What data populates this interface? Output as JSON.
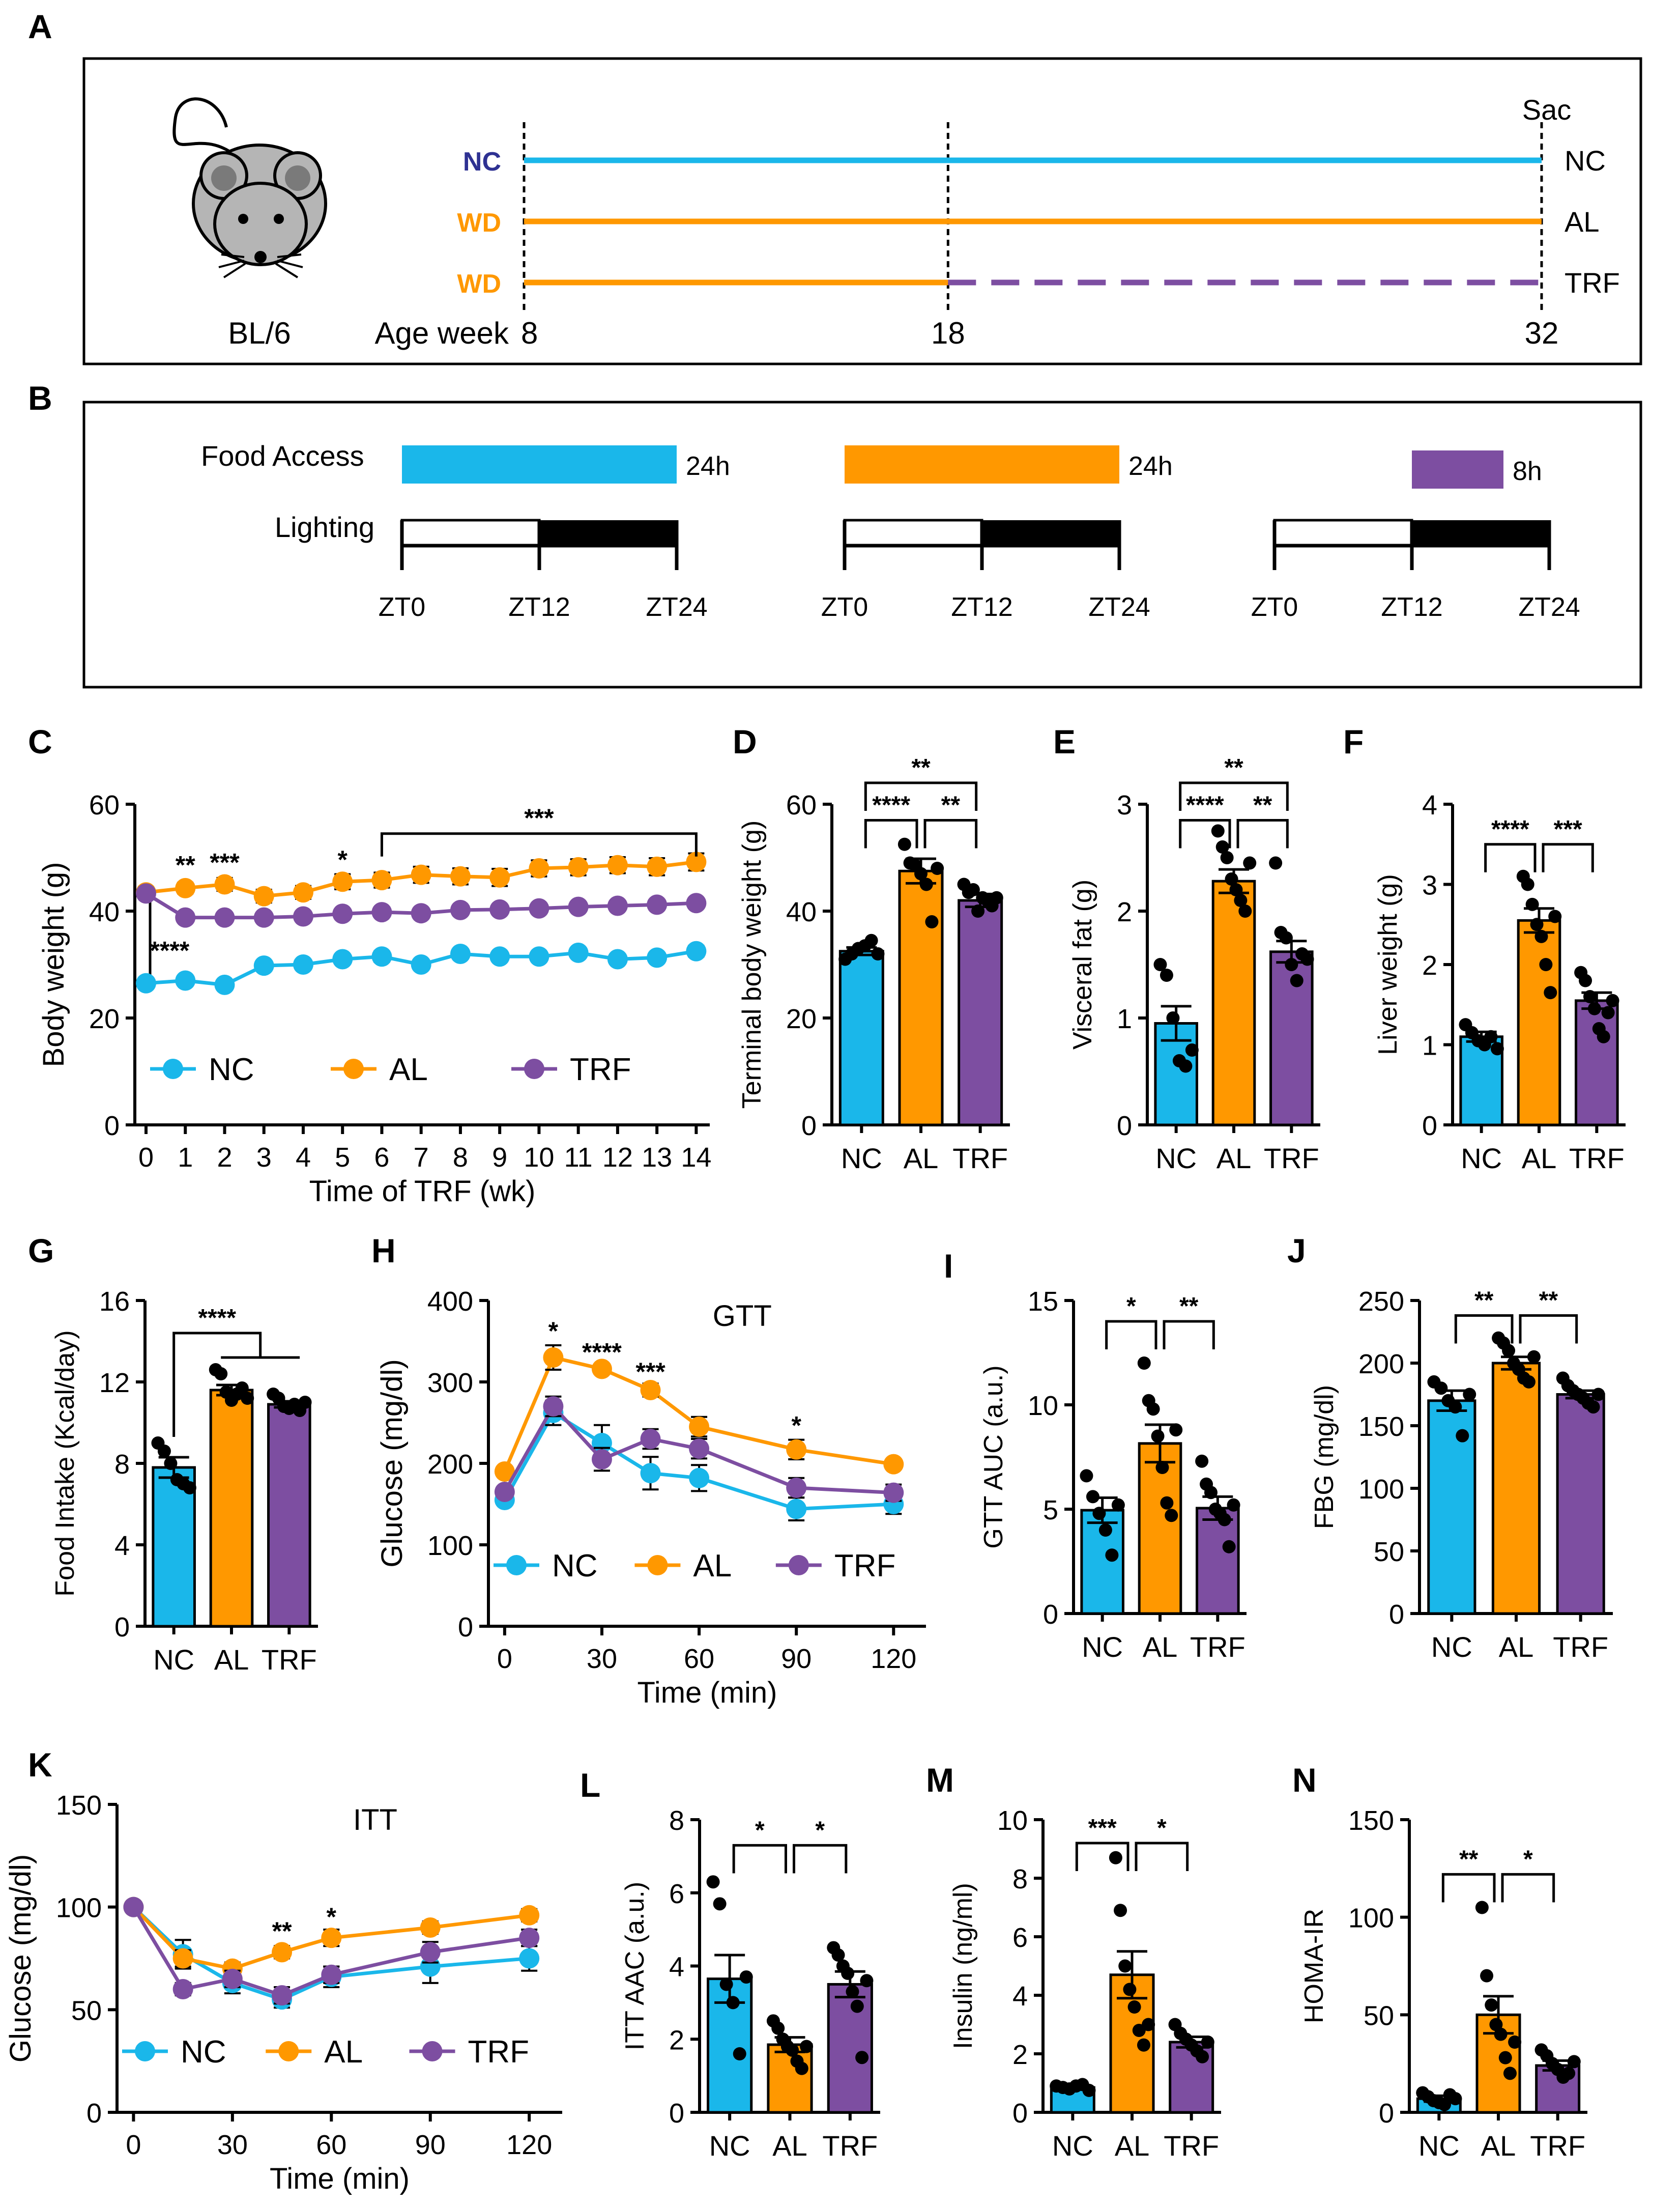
{
  "colors": {
    "nc": "#1ab7ea",
    "al": "#ff9800",
    "trf": "#7d4ea1",
    "nc_label": "#2e3192",
    "dark": "#000000"
  },
  "panels": {
    "a": "A",
    "b": "B",
    "c": "C",
    "d": "D",
    "e": "E",
    "f": "F",
    "g": "G",
    "h": "H",
    "i": "I",
    "j": "J",
    "k": "K",
    "l": "L",
    "m": "M",
    "n": "N"
  },
  "design": {
    "strain": "BL/6",
    "sac": "Sac",
    "rows": [
      {
        "diet": "NC",
        "group": "NC",
        "segments": [
          {
            "from": 8,
            "to": 32,
            "style": "solid",
            "color": "nc"
          }
        ]
      },
      {
        "diet": "WD",
        "group": "AL",
        "segments": [
          {
            "from": 8,
            "to": 32,
            "style": "solid",
            "color": "al"
          }
        ]
      },
      {
        "diet": "WD",
        "group": "TRF",
        "segments": [
          {
            "from": 8,
            "to": 18,
            "style": "solid",
            "color": "al"
          },
          {
            "from": 18,
            "to": 32,
            "style": "dashed",
            "color": "trf"
          }
        ]
      }
    ],
    "age_label": "Age week",
    "ages": [
      "8",
      "18",
      "32"
    ]
  },
  "schedule": {
    "food_label": "Food Access",
    "light_label": "Lighting",
    "groups": [
      {
        "color": "nc",
        "start": 0,
        "end": 24,
        "duration": "24h"
      },
      {
        "color": "al",
        "start": 0,
        "end": 24,
        "duration": "24h"
      },
      {
        "color": "trf",
        "start": 12,
        "end": 20,
        "duration": "8h"
      }
    ],
    "zt_labels": [
      "ZT0",
      "ZT12",
      "ZT24"
    ]
  },
  "chart_data": [
    {
      "id": "C",
      "type": "line",
      "ylabel": "Body weight (g)",
      "xlabel": "Time of TRF (wk)",
      "ylim": [
        0,
        60
      ],
      "yticks": [
        0,
        20,
        40,
        60
      ],
      "x": [
        0,
        1,
        2,
        3,
        4,
        5,
        6,
        7,
        8,
        9,
        10,
        11,
        12,
        13,
        14
      ],
      "series": [
        {
          "name": "NC",
          "color": "nc",
          "values": [
            26.5,
            27,
            26.2,
            29.8,
            30,
            31,
            31.5,
            30,
            32,
            31.5,
            31.5,
            32.2,
            31,
            31.3,
            32.5
          ],
          "err": [
            0.6,
            0.6,
            0.6,
            0.8,
            0.8,
            0.9,
            1,
            0.8,
            0.9,
            0.9,
            0.9,
            0.9,
            0.9,
            0.9,
            1
          ]
        },
        {
          "name": "AL",
          "color": "al",
          "values": [
            43.5,
            44.3,
            45,
            42.8,
            43.5,
            45.5,
            45.8,
            46.8,
            46.5,
            46.3,
            48,
            48.2,
            48.6,
            48.3,
            49.2
          ],
          "err": [
            1,
            1,
            1.2,
            1.2,
            1.2,
            1.4,
            1.4,
            1.5,
            1.5,
            1.6,
            1.5,
            1.5,
            1.5,
            1.6,
            1.6
          ]
        },
        {
          "name": "TRF",
          "color": "trf",
          "values": [
            43.3,
            38.8,
            38.8,
            38.8,
            39,
            39.5,
            39.8,
            39.6,
            40.2,
            40.3,
            40.5,
            40.8,
            41,
            41.2,
            41.5
          ],
          "err": [
            0.8,
            0.8,
            0.8,
            0.8,
            0.8,
            0.8,
            0.9,
            0.9,
            0.9,
            0.9,
            0.9,
            0.9,
            0.9,
            0.9,
            0.9
          ]
        }
      ],
      "annotations": [
        {
          "x": 1,
          "y": 47,
          "text": "**"
        },
        {
          "x": 2,
          "y": 47.5,
          "text": "***"
        },
        {
          "x": 5,
          "y": 48,
          "text": "*"
        },
        {
          "x": 0.6,
          "y": 31,
          "text": "****"
        }
      ],
      "brackets": [
        {
          "x1": 6,
          "x2": 14,
          "y": 54.5,
          "text": "***"
        }
      ],
      "vline": {
        "x": 0,
        "y1": 42.5,
        "y2": 28
      },
      "legend": [
        "NC",
        "AL",
        "TRF"
      ]
    },
    {
      "id": "D",
      "type": "bar",
      "ylabel": "Terminal body weight (g)",
      "categories": [
        "NC",
        "AL",
        "TRF"
      ],
      "ylim": [
        0,
        60
      ],
      "yticks": [
        0,
        20,
        40,
        60
      ],
      "values": [
        32.5,
        47.5,
        42
      ],
      "err": [
        0.7,
        2.3,
        1.2
      ],
      "points": [
        [
          31,
          32,
          33,
          33.5,
          34.5,
          32
        ],
        [
          52.5,
          49,
          48.5,
          47,
          45,
          38,
          48
        ],
        [
          45,
          43.5,
          44,
          40,
          42.5,
          42,
          41,
          42.5
        ]
      ],
      "brackets": [
        {
          "a": 0,
          "b": 1,
          "y": 57,
          "text": "****"
        },
        {
          "a": 1,
          "b": 2,
          "y": 57,
          "text": "**"
        },
        {
          "a": 0,
          "b": 2,
          "y": 64,
          "text": "**"
        }
      ]
    },
    {
      "id": "E",
      "type": "bar",
      "ylabel": "Visceral fat (g)",
      "categories": [
        "NC",
        "AL",
        "TRF"
      ],
      "ylim": [
        0,
        3
      ],
      "yticks": [
        0,
        1,
        2,
        3
      ],
      "values": [
        0.95,
        2.28,
        1.62
      ],
      "err": [
        0.16,
        0.11,
        0.1
      ],
      "points": [
        [
          1.5,
          1.4,
          1,
          0.6,
          0.55,
          0.7
        ],
        [
          2.75,
          2.6,
          2.5,
          2.3,
          2.2,
          2.1,
          2.0,
          2.45
        ],
        [
          2.45,
          1.8,
          1.75,
          1.5,
          1.35,
          1.6,
          1.55
        ]
      ],
      "brackets": [
        {
          "a": 0,
          "b": 1,
          "y": 2.85,
          "text": "****"
        },
        {
          "a": 1,
          "b": 2,
          "y": 2.85,
          "text": "**"
        },
        {
          "a": 0,
          "b": 2,
          "y": 3.2,
          "text": "**"
        }
      ]
    },
    {
      "id": "F",
      "type": "bar",
      "ylabel": "Liver weight (g)",
      "categories": [
        "NC",
        "AL",
        "TRF"
      ],
      "ylim": [
        0,
        4
      ],
      "yticks": [
        0,
        1,
        2,
        3,
        4
      ],
      "values": [
        1.1,
        2.55,
        1.55
      ],
      "err": [
        0.06,
        0.15,
        0.1
      ],
      "points": [
        [
          1.25,
          1.15,
          1.05,
          1.0,
          1.1,
          0.95
        ],
        [
          3.1,
          3.0,
          2.75,
          2.5,
          2.35,
          2.0,
          1.65,
          2.6
        ],
        [
          1.9,
          1.8,
          1.6,
          1.45,
          1.2,
          1.1,
          1.4,
          1.55
        ]
      ],
      "brackets": [
        {
          "a": 0,
          "b": 1,
          "y": 3.5,
          "text": "****"
        },
        {
          "a": 1,
          "b": 2,
          "y": 3.5,
          "text": "***"
        }
      ]
    },
    {
      "id": "G",
      "type": "bar",
      "ylabel": "Food Intake (Kcal/day)",
      "categories": [
        "NC",
        "AL",
        "TRF"
      ],
      "ylim": [
        0,
        16
      ],
      "yticks": [
        0,
        4,
        8,
        12,
        16
      ],
      "values": [
        7.8,
        11.6,
        10.9
      ],
      "err": [
        0.5,
        0.25,
        0.15
      ],
      "points": [
        [
          9,
          8.6,
          8,
          7.2,
          7,
          6.8
        ],
        [
          12.6,
          12.4,
          11.5,
          11.1,
          11.4,
          11.7,
          11.2
        ],
        [
          11.4,
          11.2,
          10.8,
          10.7,
          10.9,
          10.6,
          11
        ]
      ],
      "brackets": [
        {
          "a": 0,
          "b": 1.5,
          "y": 14.4,
          "text": "****",
          "group": [
            1,
            2
          ],
          "gy": 13.2
        }
      ]
    },
    {
      "id": "H",
      "type": "line",
      "title": "GTT",
      "ylabel": "Glucose (mg/dl)",
      "xlabel": "Time (min)",
      "ylim": [
        0,
        400
      ],
      "yticks": [
        0,
        100,
        200,
        300,
        400
      ],
      "x": [
        0,
        15,
        30,
        45,
        60,
        90,
        120
      ],
      "xticks": [
        0,
        30,
        60,
        90,
        120
      ],
      "xlim": [
        -5,
        130
      ],
      "series": [
        {
          "name": "NC",
          "color": "nc",
          "values": [
            155,
            262,
            225,
            188,
            182,
            144,
            150
          ],
          "err": [
            5,
            15,
            22,
            20,
            16,
            14,
            12
          ]
        },
        {
          "name": "AL",
          "color": "al",
          "values": [
            190,
            330,
            316,
            290,
            245,
            217,
            199
          ],
          "err": [
            5,
            15,
            5,
            8,
            12,
            12,
            6
          ]
        },
        {
          "name": "TRF",
          "color": "trf",
          "values": [
            165,
            270,
            205,
            230,
            218,
            170,
            164
          ],
          "err": [
            6,
            12,
            14,
            12,
            12,
            12,
            10
          ]
        }
      ],
      "annotations": [
        {
          "x": 15,
          "y": 352,
          "text": "*"
        },
        {
          "x": 30,
          "y": 326,
          "text": "****"
        },
        {
          "x": 45,
          "y": 302,
          "text": "***"
        },
        {
          "x": 90,
          "y": 236,
          "text": "*"
        }
      ],
      "legend": [
        "NC",
        "AL",
        "TRF"
      ]
    },
    {
      "id": "I",
      "type": "bar",
      "ylabel": "GTT AUC (a.u.)",
      "categories": [
        "NC",
        "AL",
        "TRF"
      ],
      "ylim": [
        0,
        15
      ],
      "yticks": [
        0,
        5,
        10,
        15
      ],
      "values": [
        4.95,
        8.15,
        5.05
      ],
      "err": [
        0.6,
        0.9,
        0.55
      ],
      "points": [
        [
          6.6,
          5.6,
          4.8,
          4.0,
          2.8,
          5.2
        ],
        [
          12.0,
          10.2,
          9.8,
          8.5,
          7.0,
          5.3,
          4.7,
          8.8
        ],
        [
          7.3,
          6.2,
          5.8,
          5.0,
          4.8,
          4.5,
          3.2,
          5.2
        ]
      ],
      "brackets": [
        {
          "a": 0,
          "b": 1,
          "y": 14.0,
          "text": "*"
        },
        {
          "a": 1,
          "b": 2,
          "y": 14.0,
          "text": "**"
        }
      ]
    },
    {
      "id": "J",
      "type": "bar",
      "ylabel": "FBG (mg/dl)",
      "categories": [
        "NC",
        "AL",
        "TRF"
      ],
      "ylim": [
        0,
        250
      ],
      "yticks": [
        0,
        50,
        100,
        150,
        200,
        250
      ],
      "values": [
        170,
        200,
        175
      ],
      "err": [
        8,
        5,
        3
      ],
      "points": [
        [
          185,
          180,
          170,
          165,
          142,
          175
        ],
        [
          220,
          216,
          210,
          200,
          195,
          188,
          185,
          205
        ],
        [
          188,
          182,
          178,
          175,
          172,
          168,
          165,
          175
        ]
      ],
      "brackets": [
        {
          "a": 0,
          "b": 1,
          "y": 238,
          "text": "**"
        },
        {
          "a": 1,
          "b": 2,
          "y": 238,
          "text": "**"
        }
      ]
    },
    {
      "id": "K",
      "type": "line",
      "title": "ITT",
      "ylabel": "Glucose (mg/dl)",
      "xlabel": "Time (min)",
      "ylim": [
        0,
        150
      ],
      "yticks": [
        0,
        50,
        100,
        150
      ],
      "x": [
        0,
        15,
        30,
        45,
        60,
        90,
        120
      ],
      "xticks": [
        0,
        30,
        60,
        90,
        120
      ],
      "xlim": [
        -5,
        130
      ],
      "series": [
        {
          "name": "NC",
          "color": "nc",
          "values": [
            100,
            77,
            63,
            55,
            66,
            71,
            75
          ],
          "err": [
            0,
            7,
            5,
            4,
            5,
            8,
            6
          ]
        },
        {
          "name": "AL",
          "color": "al",
          "values": [
            100,
            75,
            70,
            78,
            85,
            90,
            96
          ],
          "err": [
            0,
            4,
            3,
            3,
            4,
            3,
            3
          ]
        },
        {
          "name": "TRF",
          "color": "trf",
          "values": [
            100,
            60,
            65,
            57,
            67,
            78,
            85
          ],
          "err": [
            0,
            3,
            4,
            4,
            4,
            5,
            4
          ]
        }
      ],
      "annotations": [
        {
          "x": 45,
          "y": 84,
          "text": "**"
        },
        {
          "x": 60,
          "y": 91,
          "text": "*"
        }
      ],
      "legend": [
        "NC",
        "AL",
        "TRF"
      ]
    },
    {
      "id": "L",
      "type": "bar",
      "ylabel": "ITT AAC (a.u.)",
      "categories": [
        "NC",
        "AL",
        "TRF"
      ],
      "ylim": [
        0,
        8
      ],
      "yticks": [
        0,
        2,
        4,
        6,
        8
      ],
      "values": [
        3.65,
        1.85,
        3.5
      ],
      "err": [
        0.65,
        0.2,
        0.35
      ],
      "points": [
        [
          6.3,
          5.7,
          3.5,
          3.0,
          1.6,
          3.7
        ],
        [
          2.5,
          2.3,
          2.0,
          1.8,
          1.7,
          1.4,
          1.2,
          1.8
        ],
        [
          4.5,
          4.3,
          4.0,
          3.8,
          3.3,
          2.9,
          1.5,
          3.6
        ]
      ],
      "brackets": [
        {
          "a": 0,
          "b": 1,
          "y": 7.3,
          "text": "*"
        },
        {
          "a": 1,
          "b": 2,
          "y": 7.3,
          "text": "*"
        }
      ]
    },
    {
      "id": "M",
      "type": "bar",
      "ylabel": "Insulin (ng/ml)",
      "categories": [
        "NC",
        "AL",
        "TRF"
      ],
      "ylim": [
        0,
        10
      ],
      "yticks": [
        0,
        2,
        4,
        6,
        8,
        10
      ],
      "values": [
        0.85,
        4.7,
        2.4
      ],
      "err": [
        0.05,
        0.8,
        0.18
      ],
      "points": [
        [
          0.9,
          0.85,
          0.8,
          0.9,
          0.95,
          0.75
        ],
        [
          8.7,
          6.9,
          5.0,
          4.2,
          3.6,
          2.8,
          2.3,
          3.0
        ],
        [
          3.0,
          2.7,
          2.5,
          2.3,
          2.1,
          1.9,
          2.4
        ]
      ],
      "brackets": [
        {
          "a": 0,
          "b": 1,
          "y": 9.2,
          "text": "***"
        },
        {
          "a": 1,
          "b": 2,
          "y": 9.2,
          "text": "*"
        }
      ]
    },
    {
      "id": "N",
      "type": "bar",
      "ylabel": "HOMA-IR",
      "categories": [
        "NC",
        "AL",
        "TRF"
      ],
      "ylim": [
        0,
        150
      ],
      "yticks": [
        0,
        50,
        100,
        150
      ],
      "values": [
        7,
        50,
        24
      ],
      "err": [
        1.5,
        9.5,
        2.5
      ],
      "points": [
        [
          10,
          8,
          6,
          5,
          4,
          9,
          7
        ],
        [
          105,
          70,
          55,
          45,
          40,
          28,
          20,
          36
        ],
        [
          32,
          29,
          25,
          22,
          18,
          20,
          26
        ]
      ],
      "brackets": [
        {
          "a": 0,
          "b": 1,
          "y": 122,
          "text": "**"
        },
        {
          "a": 1,
          "b": 2,
          "y": 122,
          "text": "*"
        }
      ]
    }
  ]
}
